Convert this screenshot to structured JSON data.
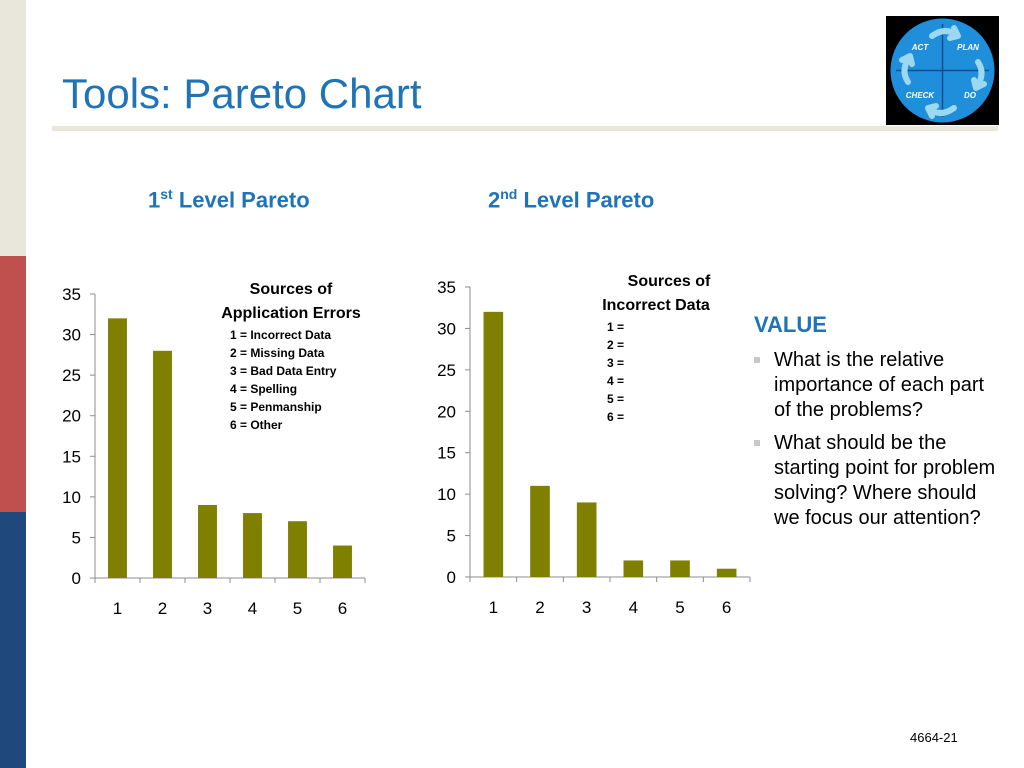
{
  "slide": {
    "title": "Tools: Pareto Chart",
    "footer": "4664-21"
  },
  "logo": {
    "labels": [
      "ACT",
      "PLAN",
      "CHECK",
      "DO"
    ],
    "colors": {
      "circle": "#1f8fdc",
      "arrow": "#9cd8f0",
      "background": "#000000"
    }
  },
  "headings": {
    "first": {
      "number": "1",
      "suffix": "st",
      "text": " Level Pareto"
    },
    "second": {
      "number": "2",
      "suffix": "nd",
      "text": " Level Pareto"
    }
  },
  "legends": {
    "first": {
      "title_line1": "Sources of",
      "title_line2": "Application Errors",
      "items": [
        "1 = Incorrect Data",
        "2 = Missing Data",
        "3 = Bad Data Entry",
        "4 = Spelling",
        "5 = Penmanship",
        "6 = Other"
      ]
    },
    "second": {
      "title_line1": "Sources of",
      "title_line2": "Incorrect Data",
      "items": [
        "1 =",
        "2 =",
        "3 =",
        "4 =",
        "5 =",
        "6 ="
      ]
    }
  },
  "value_panel": {
    "heading": "VALUE",
    "items": [
      "What is the relative importance of each part of the problems?",
      "What should be the starting point for problem solving? Where should we focus our attention?"
    ]
  },
  "colors": {
    "bar": "#7f7f00",
    "heading_blue": "#1f74b8",
    "strip_beige": "#e9e6db",
    "strip_red": "#c0504d",
    "strip_blue": "#1f497d"
  },
  "chart_data": [
    {
      "type": "bar",
      "title": "Sources of Application Errors",
      "categories": [
        "1",
        "2",
        "3",
        "4",
        "5",
        "6"
      ],
      "values": [
        32,
        28,
        9,
        8,
        7,
        4
      ],
      "ylim": [
        0,
        35
      ],
      "yticks": [
        0,
        5,
        10,
        15,
        20,
        25,
        30,
        35
      ],
      "xlabel": "",
      "ylabel": "",
      "grid": false,
      "legend": "top-right"
    },
    {
      "type": "bar",
      "title": "Sources of Incorrect Data",
      "categories": [
        "1",
        "2",
        "3",
        "4",
        "5",
        "6"
      ],
      "values": [
        32,
        11,
        9,
        2,
        2,
        1
      ],
      "ylim": [
        0,
        35
      ],
      "yticks": [
        0,
        5,
        10,
        15,
        20,
        25,
        30,
        35
      ],
      "xlabel": "",
      "ylabel": "",
      "grid": false,
      "legend": "top-right"
    }
  ]
}
